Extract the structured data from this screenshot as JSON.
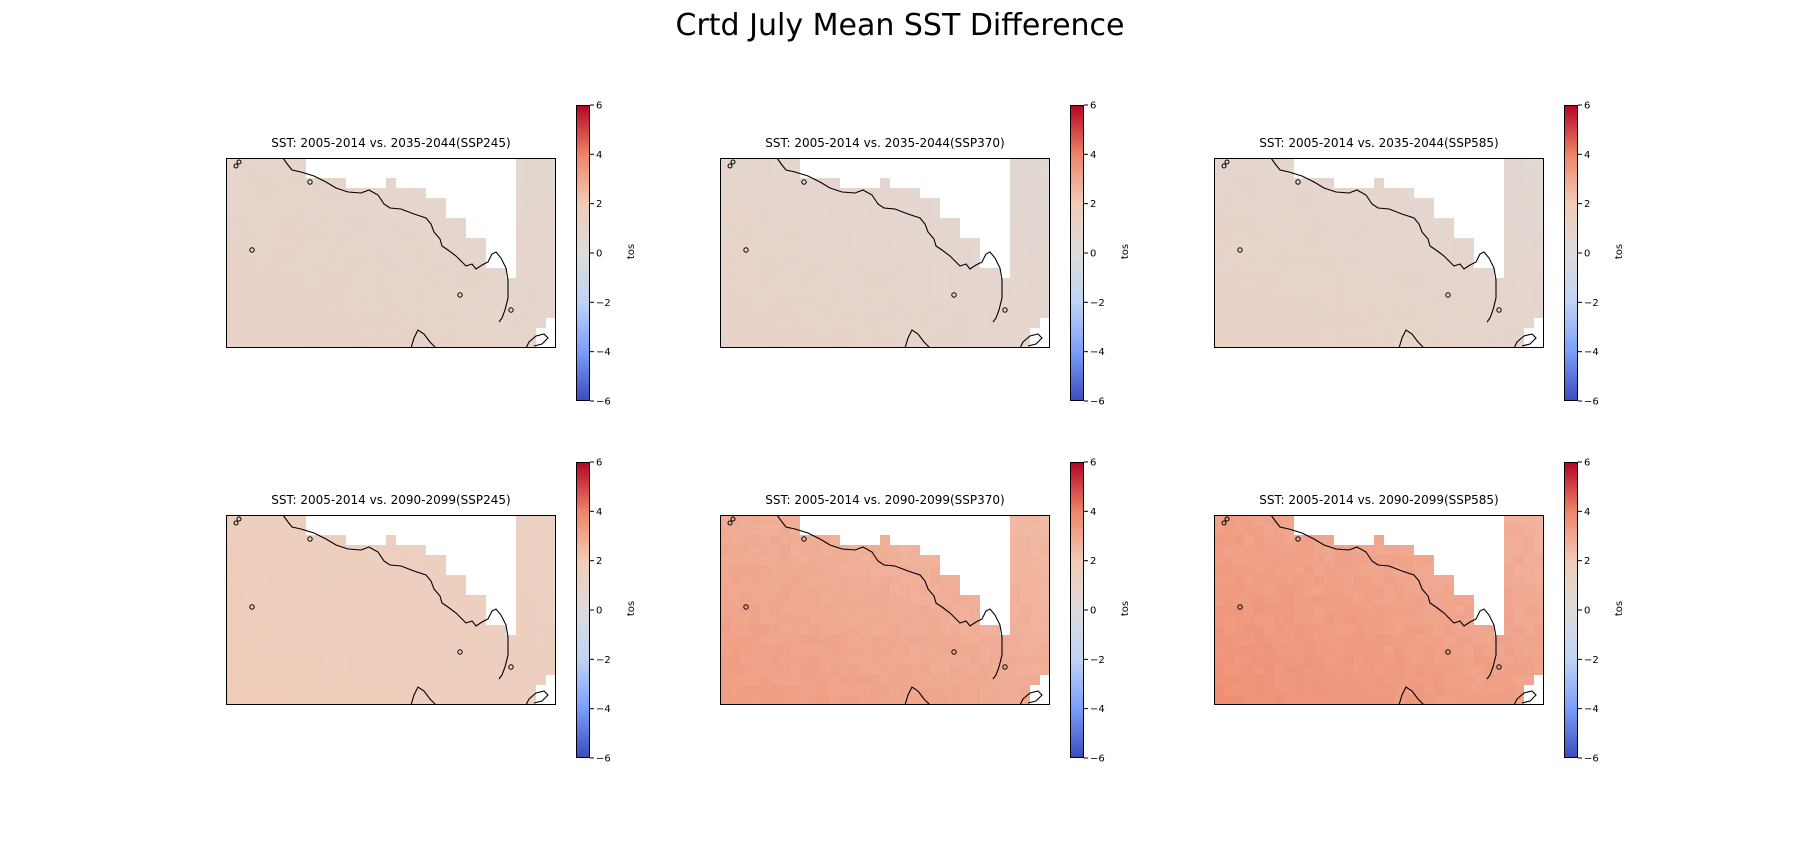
{
  "suptitle": "Crtd July Mean SST Difference",
  "colormap": {
    "name": "coolwarm",
    "stops": [
      "#3b4cc0",
      "#7b9ff9",
      "#c0d4f5",
      "#dddcdc",
      "#f2cbb7",
      "#ee8468",
      "#b40426"
    ]
  },
  "colorbar": {
    "label": "tos",
    "vmin": -6,
    "vmax": 6,
    "ticks": [
      -6,
      -4,
      -2,
      0,
      2,
      4,
      6
    ],
    "tick_labels": [
      "−6",
      "−4",
      "−2",
      "0",
      "2",
      "4",
      "6"
    ]
  },
  "chart_data": [
    {
      "type": "heatmap",
      "title": "SST: 2005-2014 vs. 2035-2044(SSP245)",
      "mean_diff": 0.9,
      "spread": 0.25
    },
    {
      "type": "heatmap",
      "title": "SST: 2005-2014 vs. 2035-2044(SSP370)",
      "mean_diff": 0.8,
      "spread": 0.3
    },
    {
      "type": "heatmap",
      "title": "SST: 2005-2014 vs. 2035-2044(SSP585)",
      "mean_diff": 0.85,
      "spread": 0.3
    },
    {
      "type": "heatmap",
      "title": "SST: 2005-2014 vs. 2090-2099(SSP245)",
      "mean_diff": 1.6,
      "spread": 0.25
    },
    {
      "type": "heatmap",
      "title": "SST: 2005-2014 vs. 2090-2099(SSP370)",
      "mean_diff": 2.9,
      "spread": 0.35
    },
    {
      "type": "heatmap",
      "title": "SST: 2005-2014 vs. 2090-2099(SSP585)",
      "mean_diff": 3.2,
      "spread": 0.4
    }
  ]
}
